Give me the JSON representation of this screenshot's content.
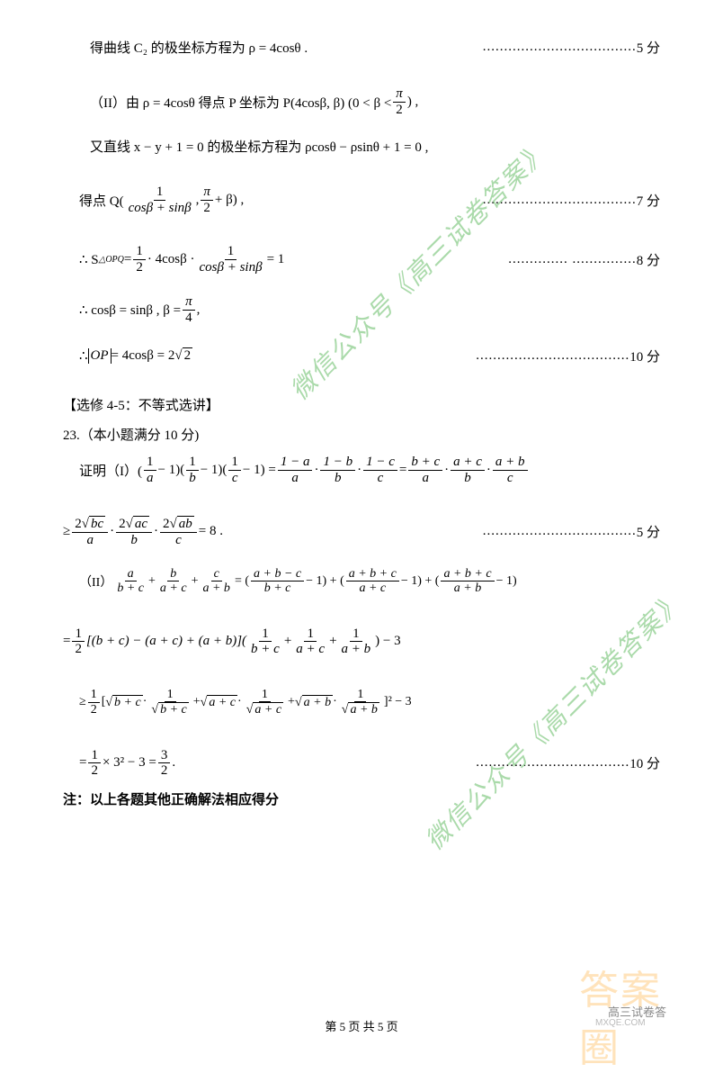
{
  "lines": {
    "l1": "得曲线 C₂ 的极坐标方程为 ρ = 4cosθ .",
    "l1_points": "5 分",
    "l2_a": "（II）由 ρ = 4cosθ 得点 P 坐标为 P(4cosβ, β) (0 < β <",
    "l2_b": ") ,",
    "l2_frac_n": "π",
    "l2_frac_d": "2",
    "l3": "又直线 x − y + 1 = 0 的极坐标方程为 ρcosθ − ρsinθ + 1 = 0 ,",
    "l4_a": "得点 Q(",
    "l4_frac1_n": "1",
    "l4_frac1_d": "cosβ + sinβ",
    "l4_b": ",",
    "l4_frac2_n": "π",
    "l4_frac2_d": "2",
    "l4_c": " + β) ,",
    "l4_points": "7 分",
    "l5_a": "∴  S",
    "l5_sub": "△OPQ",
    "l5_b": " = ",
    "l5_f1n": "1",
    "l5_f1d": "2",
    "l5_c": " · 4cosβ · ",
    "l5_f2n": "1",
    "l5_f2d": "cosβ + sinβ",
    "l5_d": " = 1",
    "l5_points": "8 分",
    "l6_a": "∴  cosβ = sinβ ,  β = ",
    "l6_fn": "π",
    "l6_fd": "4",
    "l6_b": " ,",
    "l7_a": "∴  ",
    "l7_abs": "OP",
    "l7_b": " = 4cosβ = 2",
    "l7_sqrt": "2",
    "l7_points": "10 分",
    "h1": "【选修 4-5：不等式选讲】",
    "h2": "23.（本小题满分 10 分)",
    "l8_a": "证明（I）(",
    "l8_f1n": "1",
    "l8_f1d": "a",
    "l8_b": " − 1)(",
    "l8_f2n": "1",
    "l8_f2d": "b",
    "l8_c": " − 1)(",
    "l8_f3n": "1",
    "l8_f3d": "c",
    "l8_d": " − 1) = ",
    "l8_f4n": "1 − a",
    "l8_f4d": "a",
    "l8_e": " · ",
    "l8_f5n": "1 − b",
    "l8_f5d": "b",
    "l8_f": " · ",
    "l8_f6n": "1 − c",
    "l8_f6d": "c",
    "l8_g": " = ",
    "l8_f7n": "b + c",
    "l8_f7d": "a",
    "l8_h": " · ",
    "l8_f8n": "a + c",
    "l8_f8d": "b",
    "l8_i": " · ",
    "l8_f9n": "a + b",
    "l8_f9d": "c",
    "l9_a": "≥ ",
    "l9_f1n": "2√bc",
    "l9_f1d": "a",
    "l9_b": " · ",
    "l9_f2n": "2√ac",
    "l9_f2d": "b",
    "l9_c": " · ",
    "l9_f3n": "2√ab",
    "l9_f3d": "c",
    "l9_d": " = 8  .",
    "l9_points": "5 分",
    "l10_a": "（II）",
    "l10_f1n": "a",
    "l10_f1d": "b + c",
    "l10_b": " + ",
    "l10_f2n": "b",
    "l10_f2d": "a + c",
    "l10_c": " + ",
    "l10_f3n": "c",
    "l10_f3d": "a + b",
    "l10_d": " = (",
    "l10_f4n": "a + b − c",
    "l10_f4d": "b + c",
    "l10_e": " − 1) + (",
    "l10_f5n": "a + b + c",
    "l10_f5d": "a + c",
    "l10_f": " − 1) + (",
    "l10_f6n": "a + b + c",
    "l10_f6d": "a + b",
    "l10_g": " − 1)",
    "l11_a": "= ",
    "l11_f1n": "1",
    "l11_f1d": "2",
    "l11_b": "[(b + c) − (a + c) + (a + b)](",
    "l11_f2n": "1",
    "l11_f2d": "b + c",
    "l11_c": " + ",
    "l11_f3n": "1",
    "l11_f3d": "a + c",
    "l11_d": " + ",
    "l11_f4n": "1",
    "l11_f4d": "a + b",
    "l11_e": ") − 3",
    "l12_a": "≥ ",
    "l12_f0n": "1",
    "l12_f0d": "2",
    "l12_b": "[",
    "l12_s1": "b + c",
    "l12_c": " · ",
    "l12_f1n": "1",
    "l12_f1d_s": "b + c",
    "l12_d": " + ",
    "l12_s2": "a + c",
    "l12_e": " · ",
    "l12_f2n": "1",
    "l12_f2d_s": "a + c",
    "l12_f": " + ",
    "l12_s3": "a + b",
    "l12_g": " · ",
    "l12_f3n": "1",
    "l12_f3d_s": "a + b",
    "l12_h": "]² − 3",
    "l13_a": "= ",
    "l13_f1n": "1",
    "l13_f1d": "2",
    "l13_b": " × 3² − 3 = ",
    "l13_f2n": "3",
    "l13_f2d": "2",
    "l13_c": " .",
    "l13_points": "10 分",
    "note": "注：以上各题其他正确解法相应得分",
    "watermark": "微信公众号《高三试卷答案》",
    "stamp_bg": "答案圈",
    "stamp_text": "高三试卷答",
    "stamp_url": "MXQE.COM",
    "footer": "第 5 页 共 5 页",
    "dots_long": "....................................",
    "dots_med": "..............  ...............",
    "dots_short": "..............................."
  }
}
